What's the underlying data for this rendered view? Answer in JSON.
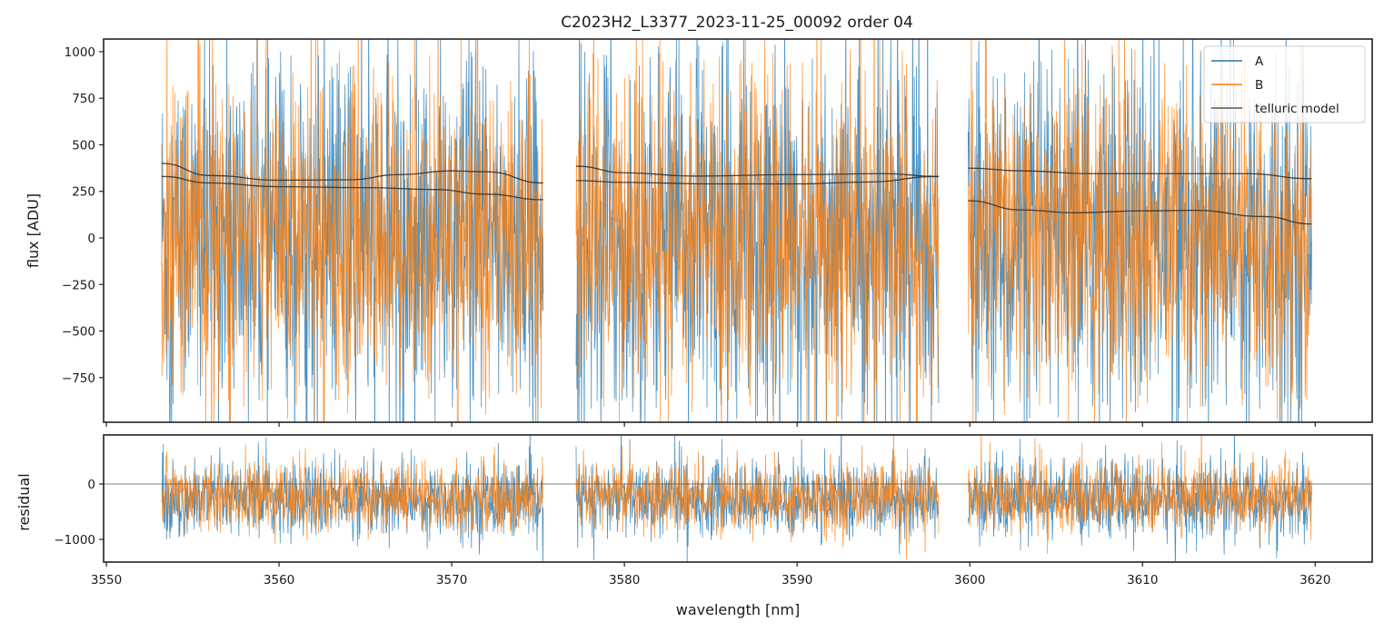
{
  "chart_data": {
    "type": "line",
    "title": "C2023H2_L3377_2023-11-25_00092  order 04",
    "xlabel": "wavelength [nm]",
    "xlim": [
      3549.84,
      3623.3
    ],
    "x_ticks": [
      3550,
      3560,
      3570,
      3580,
      3590,
      3600,
      3610,
      3620
    ],
    "legend": {
      "placement": "top-right",
      "entries": [
        {
          "label": "A",
          "color": "#1f77b4"
        },
        {
          "label": "B",
          "color": "#ff7f0e"
        },
        {
          "label": "telluric model",
          "color": "#333333"
        }
      ]
    },
    "segments": [
      {
        "x_start": 3553.2,
        "x_end": 3575.3
      },
      {
        "x_start": 3577.2,
        "x_end": 3598.2
      },
      {
        "x_start": 3599.9,
        "x_end": 3619.8
      }
    ],
    "panels": [
      {
        "name": "flux",
        "ylabel": "flux [ADU]",
        "ylim": [
          -990,
          1068
        ],
        "y_ticks": [
          -750,
          -500,
          -250,
          0,
          250,
          500,
          750,
          1000
        ],
        "series": [
          {
            "name": "A",
            "color": "#1f77b4",
            "mean": 0,
            "noise_sigma": 480
          },
          {
            "name": "B",
            "color": "#ff7f0e",
            "mean": 0,
            "noise_sigma": 420
          }
        ],
        "telluric_model": [
          {
            "segment": 0,
            "curve": "A",
            "points": [
              [
                3553.2,
                400
              ],
              [
                3556,
                335
              ],
              [
                3560,
                310
              ],
              [
                3564,
                312
              ],
              [
                3567,
                340
              ],
              [
                3570,
                360
              ],
              [
                3572,
                355
              ],
              [
                3575.3,
                295
              ]
            ]
          },
          {
            "segment": 0,
            "curve": "B",
            "points": [
              [
                3553.2,
                330
              ],
              [
                3556,
                295
              ],
              [
                3560,
                275
              ],
              [
                3565,
                270
              ],
              [
                3569,
                260
              ],
              [
                3572,
                235
              ],
              [
                3575.3,
                205
              ]
            ]
          },
          {
            "segment": 1,
            "curve": "A",
            "points": [
              [
                3577.2,
                385
              ],
              [
                3580,
                350
              ],
              [
                3584,
                332
              ],
              [
                3590,
                340
              ],
              [
                3595,
                345
              ],
              [
                3598.2,
                330
              ]
            ]
          },
          {
            "segment": 1,
            "curve": "B",
            "points": [
              [
                3577.2,
                308
              ],
              [
                3580,
                298
              ],
              [
                3585,
                290
              ],
              [
                3590,
                290
              ],
              [
                3594,
                300
              ],
              [
                3598.2,
                330
              ]
            ]
          },
          {
            "segment": 2,
            "curve": "A",
            "points": [
              [
                3599.9,
                375
              ],
              [
                3603,
                360
              ],
              [
                3607,
                345
              ],
              [
                3612,
                345
              ],
              [
                3616,
                345
              ],
              [
                3619.8,
                318
              ]
            ]
          },
          {
            "segment": 2,
            "curve": "B",
            "points": [
              [
                3599.9,
                200
              ],
              [
                3603,
                150
              ],
              [
                3606,
                135
              ],
              [
                3610,
                145
              ],
              [
                3613,
                148
              ],
              [
                3617,
                115
              ],
              [
                3619.8,
                75
              ]
            ]
          }
        ]
      },
      {
        "name": "residual",
        "ylabel": "residual",
        "ylim": [
          -1410,
          885
        ],
        "y_ticks": [
          -1000,
          0
        ],
        "zero_line": 0,
        "series": [
          {
            "name": "A",
            "color": "#1f77b4",
            "mean": -280,
            "noise_sigma": 330
          },
          {
            "name": "B",
            "color": "#ff7f0e",
            "mean": -240,
            "noise_sigma": 300
          }
        ]
      }
    ]
  }
}
